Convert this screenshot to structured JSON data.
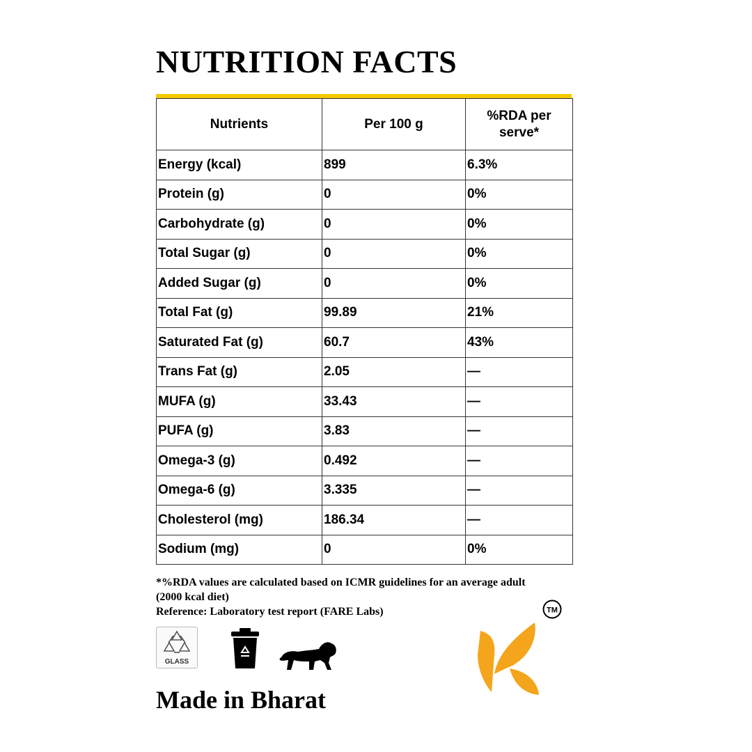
{
  "title": "NUTRITION FACTS",
  "colors": {
    "accent": "#f5c800",
    "logo": "#f4a51c",
    "border": "#333333"
  },
  "table": {
    "headers": [
      "Nutrients",
      "Per 100 g",
      "%RDA per serve*"
    ],
    "rows": [
      [
        "Energy (kcal)",
        "899",
        "6.3%"
      ],
      [
        "Protein (g)",
        "0",
        "0%"
      ],
      [
        "Carbohydrate (g)",
        "0",
        "0%"
      ],
      [
        "Total Sugar (g)",
        "0",
        "0%"
      ],
      [
        "Added Sugar (g)",
        "0",
        "0%"
      ],
      [
        "Total Fat (g)",
        "99.89",
        "21%"
      ],
      [
        "Saturated Fat (g)",
        "60.7",
        "43%"
      ],
      [
        "Trans Fat (g)",
        "2.05",
        "—"
      ],
      [
        "MUFA (g)",
        "33.43",
        "—"
      ],
      [
        "PUFA (g)",
        "3.83",
        "—"
      ],
      [
        "Omega-3 (g)",
        "0.492",
        "—"
      ],
      [
        "Omega-6 (g)",
        "3.335",
        "—"
      ],
      [
        "Cholesterol (mg)",
        "186.34",
        "—"
      ],
      [
        "Sodium (mg)",
        "0",
        "0%"
      ]
    ]
  },
  "footnote": {
    "line1": "*%RDA values are calculated based on ICMR guidelines for an average adult",
    "line2": "(2000 kcal diet)",
    "line3": "Reference: Laboratory test report (FARE Labs)"
  },
  "icons": {
    "glass": {
      "name": "glass-recycle-icon",
      "label": "GLASS"
    },
    "bin": "recycle-bin-icon",
    "lion": "lion-icon",
    "logo": "k-leaf-logo-icon",
    "tm": {
      "name": "trademark-icon",
      "label": "TM"
    }
  },
  "made_in": "Made in Bharat"
}
